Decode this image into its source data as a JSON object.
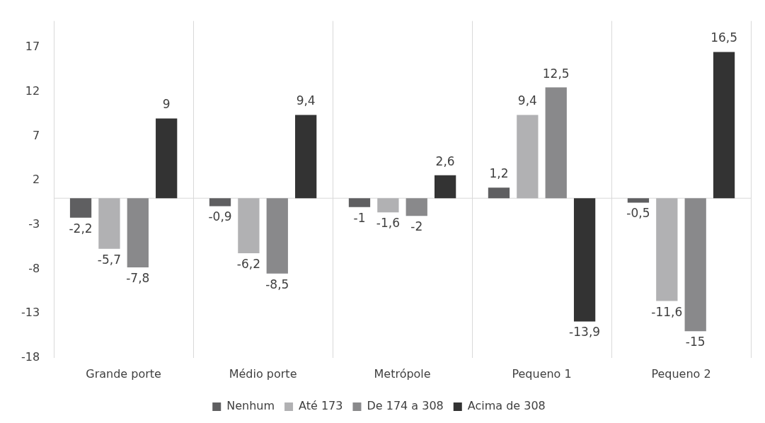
{
  "chart_data": {
    "type": "bar",
    "categories": [
      "Grande porte",
      "Médio porte",
      "Metrópole",
      "Pequeno 1",
      "Pequeno 2"
    ],
    "series": [
      {
        "name": "Nenhum",
        "color": "#5f5f61",
        "values": [
          -2.2,
          -0.9,
          -1,
          1.2,
          -0.5
        ],
        "value_labels": [
          "-2,2",
          "-0,9",
          "-1",
          "1,2",
          "-0,5"
        ]
      },
      {
        "name": "Até 173",
        "color": "#b1b1b3",
        "values": [
          -5.7,
          -6.2,
          -1.6,
          9.4,
          -11.6
        ],
        "value_labels": [
          "-5,7",
          "-6,2",
          "-1,6",
          "9,4",
          "-11,6"
        ]
      },
      {
        "name": "De 174 a 308",
        "color": "#89898b",
        "values": [
          -7.8,
          -8.5,
          -2,
          12.5,
          -15
        ],
        "value_labels": [
          "-7,8",
          "-8,5",
          "-2",
          "12,5",
          "-15"
        ]
      },
      {
        "name": "Acima de 308",
        "color": "#333333",
        "values": [
          9,
          9.4,
          2.6,
          -13.9,
          16.5
        ],
        "value_labels": [
          "9",
          "9,4",
          "2,6",
          "-13,9",
          "16,5"
        ]
      }
    ],
    "ylim": [
      -18,
      20
    ],
    "yticks": [
      -18,
      -13,
      -8,
      -3,
      2,
      7,
      12,
      17
    ],
    "grid": "x",
    "legend": "bottom"
  }
}
